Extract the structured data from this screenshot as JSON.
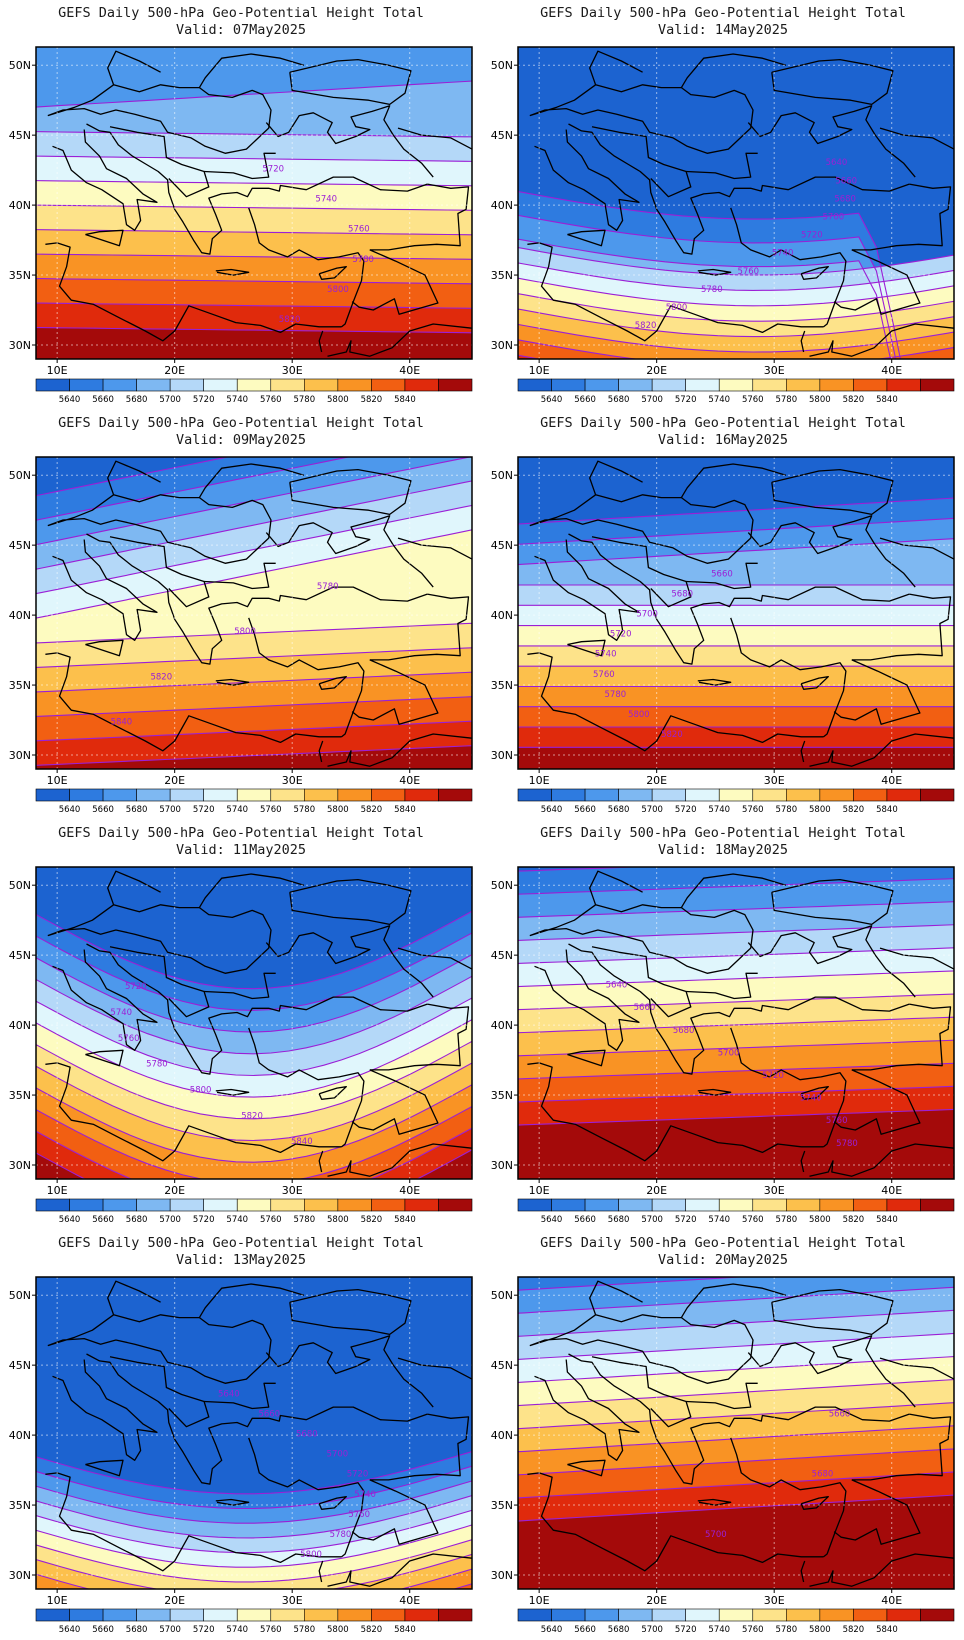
{
  "title": "GEFS Daily 500-hPa Geo-Potential Height Total",
  "lat_labels": [
    "50N",
    "45N",
    "40N",
    "35N",
    "30N"
  ],
  "lon_labels": [
    "10E",
    "20E",
    "30E",
    "40E"
  ],
  "colorbar": {
    "labels": [
      "5640",
      "5660",
      "5680",
      "5700",
      "5720",
      "5740",
      "5760",
      "5780",
      "5800",
      "5820",
      "5840"
    ],
    "colors": [
      "#1c63d0",
      "#2e7be0",
      "#4d98ec",
      "#7eb8f2",
      "#b4d8f8",
      "#e0f6fc",
      "#fdfbc0",
      "#fde38a",
      "#fcc04c",
      "#f99324",
      "#f25f12",
      "#e02a0c",
      "#a40a0a"
    ]
  },
  "contour_color": "#9b1fd6",
  "panels": [
    {
      "valid": "Valid: 07May2025",
      "labels": [
        "5720",
        "5740",
        "5760",
        "5780",
        "5800",
        "5820"
      ]
    },
    {
      "valid": "Valid: 14May2025",
      "labels": [
        "5640",
        "5660",
        "5680",
        "5700",
        "5720",
        "5740",
        "5760",
        "5780",
        "5800",
        "5820"
      ]
    },
    {
      "valid": "Valid: 09May2025",
      "labels": [
        "5780",
        "5800",
        "5820",
        "5840"
      ]
    },
    {
      "valid": "Valid: 16May2025",
      "labels": [
        "5660",
        "5680",
        "5700",
        "5720",
        "5740",
        "5760",
        "5780",
        "5800",
        "5820"
      ]
    },
    {
      "valid": "Valid: 11May2025",
      "labels": [
        "5720",
        "5740",
        "5760",
        "5780",
        "5800",
        "5820",
        "5840"
      ]
    },
    {
      "valid": "Valid: 18May2025",
      "labels": [
        "5640",
        "5660",
        "5680",
        "5700",
        "5720",
        "5740",
        "5760",
        "5780"
      ]
    },
    {
      "valid": "Valid: 13May2025",
      "labels": [
        "5640",
        "5660",
        "5680",
        "5700",
        "5720",
        "5740",
        "5760",
        "5780",
        "5800"
      ]
    },
    {
      "valid": "Valid: 20May2025",
      "labels": [
        "5660",
        "5680",
        "5700"
      ]
    }
  ]
}
